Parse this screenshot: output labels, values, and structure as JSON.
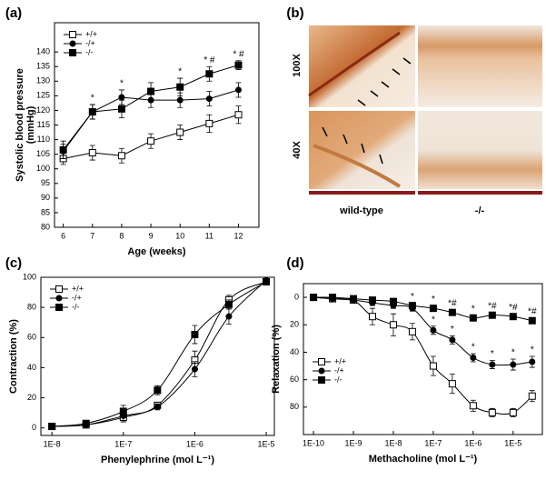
{
  "chart_data": [
    {
      "type": "line",
      "panel": "(a)",
      "x_label": "Age (weeks)",
      "y_label": [
        "Systolic blood pressure",
        "(mmHg)"
      ],
      "x": [
        6,
        7,
        8,
        9,
        10,
        11,
        12
      ],
      "xlim": [
        5.7,
        12.7
      ],
      "xticks": [
        6,
        7,
        8,
        9,
        10,
        11,
        12
      ],
      "ylim": [
        80,
        150
      ],
      "yticks": [
        80,
        85,
        90,
        95,
        100,
        105,
        110,
        115,
        120,
        125,
        130,
        135,
        140
      ],
      "x_scale": "linear",
      "curve": "straight",
      "legend": "upper left",
      "series": [
        {
          "name": "+/+",
          "color": "#000000",
          "marker": "square-open",
          "values": [
            103.5,
            105.5,
            104.5,
            109.5,
            112.5,
            115.5,
            118.5
          ],
          "errors": [
            2,
            2.5,
            2.5,
            2.5,
            2.5,
            3,
            3
          ],
          "annotations": [
            null,
            null,
            null,
            null,
            null,
            null,
            null
          ]
        },
        {
          "name": "-/+",
          "color": "#000000",
          "marker": "circle",
          "values": [
            106,
            119.5,
            124.5,
            123.5,
            123.5,
            124,
            127
          ],
          "errors": [
            2.5,
            2.5,
            2.5,
            2.5,
            2.5,
            2.5,
            2.5
          ],
          "annotations": [
            null,
            null,
            "*",
            null,
            null,
            null,
            null
          ]
        },
        {
          "name": "-/-",
          "color": "#000000",
          "marker": "square",
          "values": [
            106.5,
            119.5,
            120.5,
            126.5,
            128,
            132.5,
            135.5
          ],
          "errors": [
            3,
            2.5,
            3,
            3,
            3,
            2.5,
            1.5
          ],
          "annotations": [
            null,
            "*",
            null,
            null,
            "*",
            "* #",
            "* #"
          ]
        }
      ]
    },
    {
      "type": "line",
      "panel": "(c)",
      "x_label": "Phenylephrine (mol L⁻¹)",
      "y_label": [
        "Contraction (%)"
      ],
      "x": [
        1e-08,
        3e-08,
        1e-07,
        3e-07,
        1e-06,
        3e-06,
        1e-05
      ],
      "xlim": [
        7e-09,
        1.3e-05
      ],
      "xticks": [
        {
          "value": 1e-08,
          "label": "1E-8"
        },
        {
          "value": 1e-07,
          "label": "1E-7"
        },
        {
          "value": 1e-06,
          "label": "1E-6"
        },
        {
          "value": 1e-05,
          "label": "1E-5"
        }
      ],
      "ylim": [
        -5,
        100
      ],
      "yticks": [
        0,
        20,
        40,
        60,
        80,
        100
      ],
      "x_scale": "log",
      "curve": "smooth",
      "legend": "upper left",
      "series": [
        {
          "name": "+/+",
          "color": "#000000",
          "marker": "square-open",
          "values": [
            1,
            2,
            7,
            15,
            45,
            85,
            97
          ],
          "errors": [
            1,
            1,
            3,
            2,
            6,
            3,
            1
          ]
        },
        {
          "name": "-/+",
          "color": "#000000",
          "marker": "circle",
          "values": [
            1,
            2,
            8,
            14,
            39,
            74,
            98
          ],
          "errors": [
            1,
            1,
            3,
            2,
            5,
            5,
            1
          ]
        },
        {
          "name": "-/-",
          "color": "#000000",
          "marker": "square",
          "values": [
            1,
            3,
            11,
            25,
            62,
            82,
            97
          ],
          "errors": [
            1,
            1,
            4,
            3,
            6,
            3,
            1
          ]
        }
      ]
    },
    {
      "type": "line",
      "panel": "(d)",
      "x_label": "Methacholine (mol L⁻¹)",
      "y_label": [
        "Relaxation (%)"
      ],
      "x": [
        1e-10,
        3e-10,
        1e-09,
        3e-09,
        1e-08,
        3e-08,
        1e-07,
        3e-07,
        1e-06,
        3e-06,
        1e-05,
        3e-05
      ],
      "xlim": [
        5.6e-11,
        5.4e-05
      ],
      "xticks": [
        {
          "value": 1e-10,
          "label": "1E-10"
        },
        {
          "value": 1e-09,
          "label": "1E-9"
        },
        {
          "value": 1e-08,
          "label": "1E-8"
        },
        {
          "value": 1e-07,
          "label": "1E-7"
        },
        {
          "value": 1e-06,
          "label": "1E-6"
        },
        {
          "value": 1e-05,
          "label": "1E-5"
        }
      ],
      "ylim": [
        -10,
        100
      ],
      "yticks": [
        0,
        20,
        40,
        60,
        80
      ],
      "y_inverted": true,
      "x_scale": "log",
      "curve": "smooth",
      "legend": "lower left",
      "series": [
        {
          "name": "+/+",
          "color": "#000000",
          "marker": "square-open",
          "values": [
            0,
            1,
            2,
            14,
            20,
            25,
            50,
            63,
            79,
            84,
            84,
            72
          ],
          "errors": [
            1,
            1,
            2,
            6,
            8,
            6,
            7,
            7,
            4,
            3,
            3,
            4
          ],
          "annotations": [
            null,
            null,
            null,
            null,
            null,
            null,
            null,
            null,
            null,
            null,
            null,
            null
          ]
        },
        {
          "name": "-/+",
          "color": "#000000",
          "marker": "circle",
          "values": [
            0,
            1,
            2,
            4,
            6,
            8,
            24,
            31,
            44,
            49,
            49,
            47
          ],
          "errors": [
            1,
            1,
            1,
            2,
            2,
            2,
            3,
            3,
            3,
            3,
            4,
            4
          ],
          "annotations": [
            null,
            null,
            null,
            null,
            null,
            null,
            "*",
            "*",
            "*",
            "*",
            "*",
            "*"
          ]
        },
        {
          "name": "-/-",
          "color": "#000000",
          "marker": "square",
          "values": [
            0,
            0,
            1,
            2,
            3,
            6,
            8,
            11,
            15,
            13,
            14,
            17
          ],
          "errors": [
            1,
            1,
            1,
            1,
            1,
            2,
            2,
            2,
            2,
            2,
            2,
            2
          ],
          "annotations": [
            null,
            null,
            null,
            null,
            null,
            "*",
            "*",
            "*#",
            "*",
            "*#",
            "*#",
            "*#"
          ]
        }
      ]
    }
  ],
  "panel_b": {
    "panel": "(b)",
    "rows": [
      "100X",
      "40X"
    ],
    "columns": [
      "wild-type",
      "-/-"
    ]
  }
}
